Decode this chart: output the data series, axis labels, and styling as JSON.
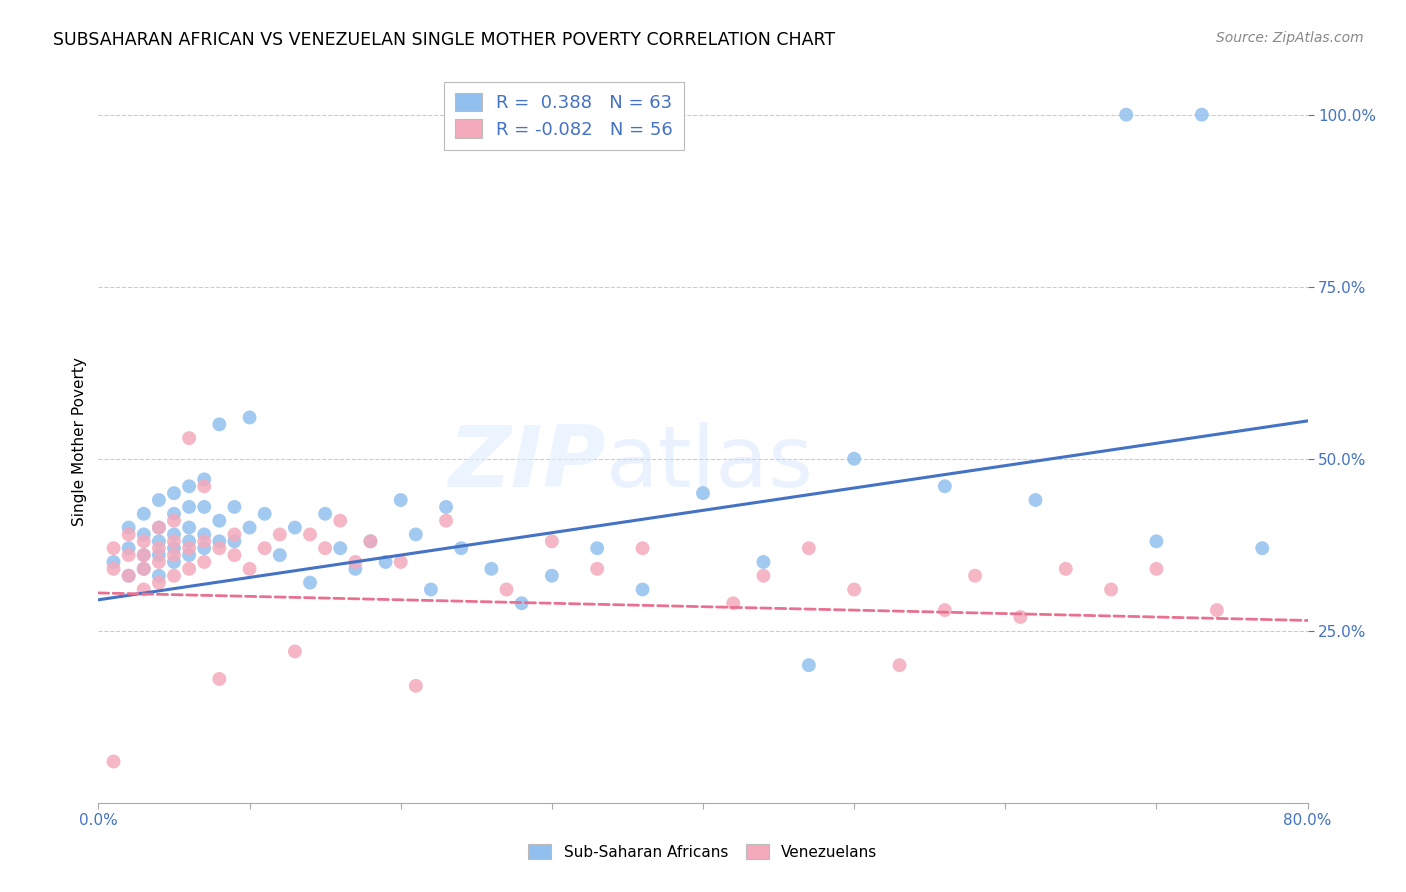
{
  "title": "SUBSAHARAN AFRICAN VS VENEZUELAN SINGLE MOTHER POVERTY CORRELATION CHART",
  "source": "Source: ZipAtlas.com",
  "ylabel": "Single Mother Poverty",
  "xlim": [
    0.0,
    0.8
  ],
  "ylim": [
    0.0,
    1.05
  ],
  "blue_R": 0.388,
  "blue_N": 63,
  "pink_R": -0.082,
  "pink_N": 56,
  "blue_color": "#92C0EE",
  "pink_color": "#F4AABB",
  "blue_line_color": "#4472C4",
  "pink_line_color": "#E87090",
  "watermark_zip": "ZIP",
  "watermark_atlas": "atlas",
  "legend_label_blue": "Sub-Saharan Africans",
  "legend_label_pink": "Venezuelans",
  "blue_scatter_x": [
    0.01,
    0.02,
    0.02,
    0.02,
    0.03,
    0.03,
    0.03,
    0.03,
    0.04,
    0.04,
    0.04,
    0.04,
    0.04,
    0.05,
    0.05,
    0.05,
    0.05,
    0.05,
    0.06,
    0.06,
    0.06,
    0.06,
    0.06,
    0.07,
    0.07,
    0.07,
    0.07,
    0.08,
    0.08,
    0.08,
    0.09,
    0.09,
    0.1,
    0.1,
    0.11,
    0.12,
    0.13,
    0.14,
    0.15,
    0.16,
    0.17,
    0.18,
    0.19,
    0.2,
    0.21,
    0.22,
    0.23,
    0.24,
    0.26,
    0.28,
    0.3,
    0.33,
    0.36,
    0.4,
    0.44,
    0.47,
    0.5,
    0.56,
    0.62,
    0.68,
    0.7,
    0.73,
    0.77
  ],
  "blue_scatter_y": [
    0.35,
    0.33,
    0.37,
    0.4,
    0.34,
    0.36,
    0.39,
    0.42,
    0.33,
    0.36,
    0.38,
    0.4,
    0.44,
    0.35,
    0.37,
    0.39,
    0.42,
    0.45,
    0.36,
    0.38,
    0.4,
    0.43,
    0.46,
    0.37,
    0.39,
    0.43,
    0.47,
    0.38,
    0.41,
    0.55,
    0.38,
    0.43,
    0.4,
    0.56,
    0.42,
    0.36,
    0.4,
    0.32,
    0.42,
    0.37,
    0.34,
    0.38,
    0.35,
    0.44,
    0.39,
    0.31,
    0.43,
    0.37,
    0.34,
    0.29,
    0.33,
    0.37,
    0.31,
    0.45,
    0.35,
    0.2,
    0.5,
    0.46,
    0.44,
    1.0,
    0.38,
    1.0,
    0.37
  ],
  "pink_scatter_x": [
    0.01,
    0.01,
    0.01,
    0.02,
    0.02,
    0.02,
    0.03,
    0.03,
    0.03,
    0.03,
    0.04,
    0.04,
    0.04,
    0.04,
    0.05,
    0.05,
    0.05,
    0.05,
    0.06,
    0.06,
    0.06,
    0.07,
    0.07,
    0.07,
    0.08,
    0.08,
    0.09,
    0.09,
    0.1,
    0.11,
    0.12,
    0.13,
    0.14,
    0.15,
    0.16,
    0.17,
    0.18,
    0.2,
    0.21,
    0.23,
    0.27,
    0.3,
    0.33,
    0.36,
    0.42,
    0.44,
    0.47,
    0.5,
    0.53,
    0.56,
    0.58,
    0.61,
    0.64,
    0.67,
    0.7,
    0.74
  ],
  "pink_scatter_y": [
    0.06,
    0.34,
    0.37,
    0.33,
    0.36,
    0.39,
    0.31,
    0.34,
    0.36,
    0.38,
    0.32,
    0.35,
    0.37,
    0.4,
    0.33,
    0.36,
    0.38,
    0.41,
    0.34,
    0.37,
    0.53,
    0.35,
    0.38,
    0.46,
    0.18,
    0.37,
    0.36,
    0.39,
    0.34,
    0.37,
    0.39,
    0.22,
    0.39,
    0.37,
    0.41,
    0.35,
    0.38,
    0.35,
    0.17,
    0.41,
    0.31,
    0.38,
    0.34,
    0.37,
    0.29,
    0.33,
    0.37,
    0.31,
    0.2,
    0.28,
    0.33,
    0.27,
    0.34,
    0.31,
    0.34,
    0.28
  ]
}
